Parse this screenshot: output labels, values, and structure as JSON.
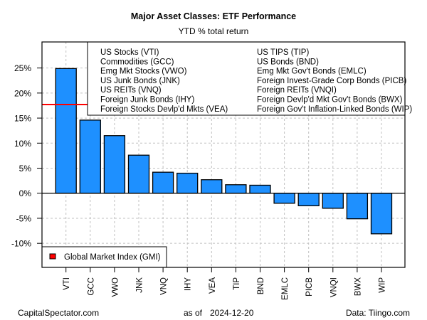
{
  "chart_data": {
    "type": "bar",
    "title": "Major Asset Classes: ETF Performance",
    "subtitle": "YTD % total return",
    "xlabel": "",
    "ylabel": "",
    "ylim": [
      -14.8,
      30.2
    ],
    "yticks": [
      -10,
      -5,
      0,
      5,
      10,
      15,
      20,
      25
    ],
    "ytick_labels": [
      "-10%",
      "-5%",
      "0%",
      "5%",
      "10%",
      "15%",
      "20%",
      "25%"
    ],
    "grid": true,
    "categories": [
      "VTI",
      "GCC",
      "VWO",
      "JNK",
      "VNQ",
      "IHY",
      "VEA",
      "TIP",
      "BND",
      "EMLC",
      "PICB",
      "VNQI",
      "BWX",
      "WIP"
    ],
    "values": [
      24.9,
      14.6,
      11.5,
      7.6,
      4.2,
      4.0,
      2.7,
      1.7,
      1.6,
      -2.0,
      -2.5,
      -3.0,
      -5.1,
      -8.1
    ],
    "bar_color": "#1E90FF",
    "reference_line": {
      "label": "Global Market Index (GMI)",
      "value": 17.7,
      "color": "#FF0000"
    },
    "legend_top": {
      "placement": "top-right",
      "column1": [
        "US Stocks (VTI)",
        "Commodities (GCC)",
        "Emg Mkt Stocks (VWO)",
        "US Junk Bonds (JNK)",
        "US REITs (VNQ)",
        "Foreign Junk Bonds (IHY)",
        "Foreign Stocks Devlp'd Mkts (VEA)"
      ],
      "column2": [
        "US TIPS (TIP)",
        "US Bonds (BND)",
        "Emg Mkt Gov't Bonds (EMLC)",
        "Foreign Invest-Grade Corp Bonds (PICB)",
        "Foreign REITs (VNQI)",
        "Foreign Devlp'd Mkt Gov't Bonds (BWX)",
        "Foreign Gov't Inflation-Linked Bonds (WIP)"
      ]
    },
    "legend_bottom": {
      "placement": "bottom-left",
      "label": "Global Market Index (GMI)",
      "color": "#FF0000"
    }
  },
  "footer": {
    "source_left": "CapitalSpectator.com",
    "as_of_label": "as of",
    "as_of_date": "2024-12-20",
    "data_source": "Data: Tiingo.com"
  }
}
